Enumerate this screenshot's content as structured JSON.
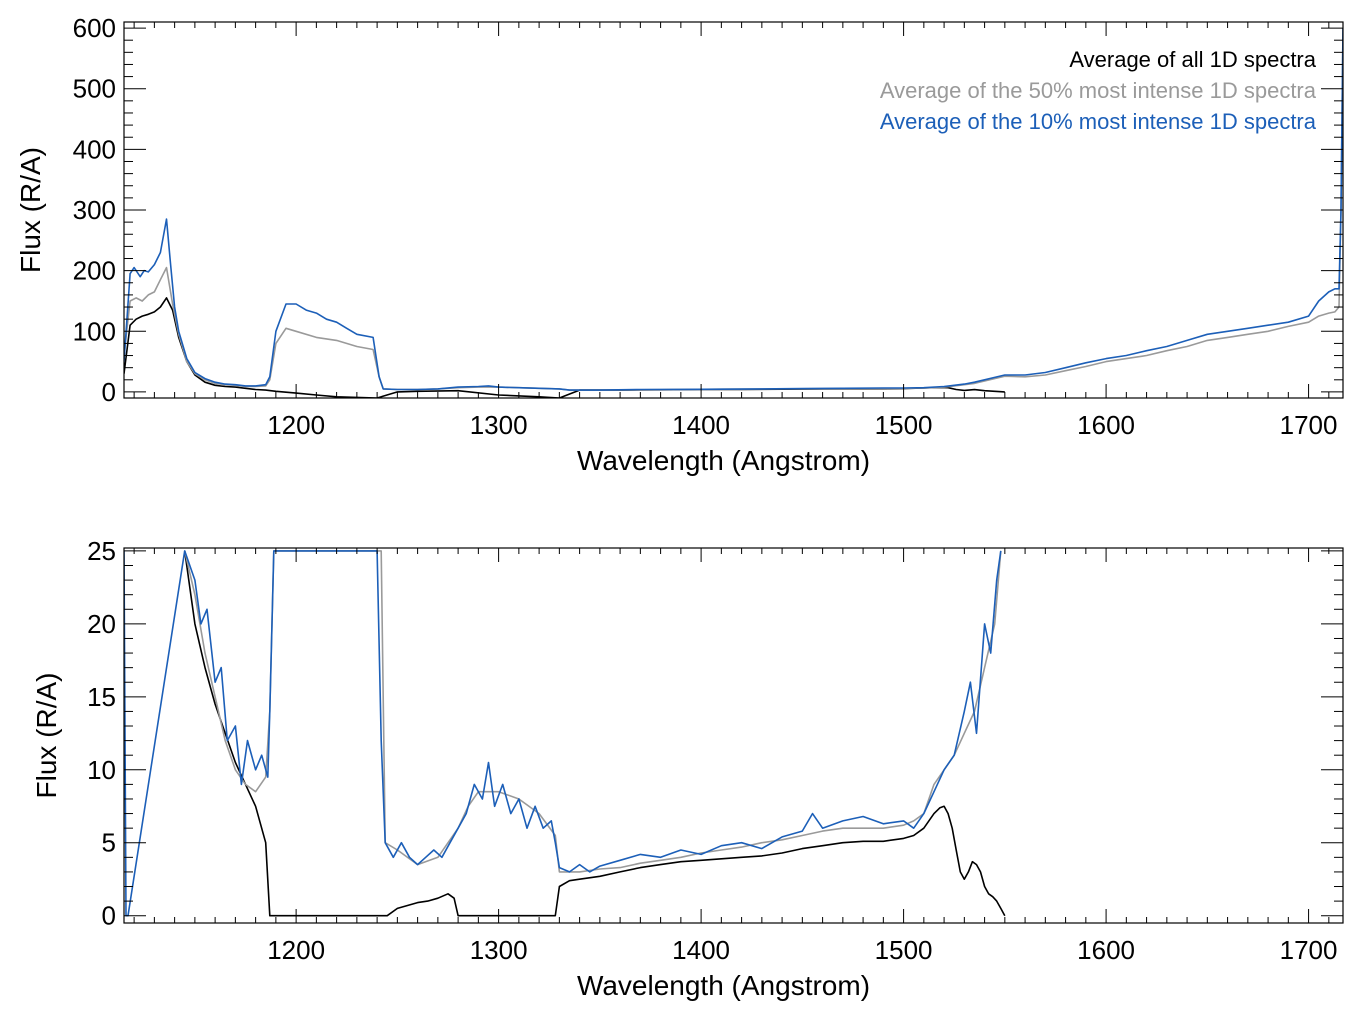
{
  "chart_data": [
    {
      "type": "line",
      "id": "top",
      "xlabel": "Wavelength (Angstrom)",
      "ylabel": "Flux (R/A)",
      "xlim": [
        1115,
        1717
      ],
      "ylim": [
        -10,
        610
      ],
      "xticks": [
        1200,
        1300,
        1400,
        1500,
        1600,
        1700
      ],
      "yticks": [
        0,
        100,
        200,
        300,
        400,
        500,
        600
      ],
      "xtick_labels": [
        "1200",
        "1300",
        "1400",
        "1500",
        "1600",
        "1700"
      ],
      "ytick_labels": [
        "0",
        "100",
        "200",
        "300",
        "400",
        "500",
        "600"
      ],
      "legend": [
        "Average of all 1D spectra",
        "Average of the 50% most intense 1D spectra",
        "Average of the 10% most intense 1D spectra"
      ],
      "legend_position": "top-right",
      "series": [
        {
          "name": "Average of all 1D spectra",
          "color": "#000000",
          "x": [
            1115,
            1118,
            1121,
            1124,
            1127,
            1130,
            1133,
            1136,
            1139,
            1142,
            1146,
            1150,
            1155,
            1160,
            1165,
            1170,
            1175,
            1180,
            1185,
            1190,
            1200,
            1210,
            1220,
            1240,
            1250,
            1260,
            1280,
            1300,
            1320,
            1330,
            1340,
            1360,
            1380,
            1400,
            1420,
            1440,
            1460,
            1480,
            1500,
            1510,
            1518,
            1522,
            1526,
            1530,
            1535,
            1540,
            1545,
            1550
          ],
          "y": [
            30,
            110,
            120,
            125,
            128,
            132,
            140,
            155,
            135,
            90,
            50,
            28,
            16,
            11,
            9,
            8,
            6,
            4,
            3,
            1,
            -2,
            -5,
            -8,
            -10,
            0,
            1,
            2,
            -5,
            -8,
            -10,
            3,
            3,
            3.5,
            4,
            4,
            4.5,
            5,
            5.2,
            5.5,
            6.5,
            7.5,
            7,
            4,
            2.5,
            3.8,
            2,
            1,
            0
          ]
        },
        {
          "name": "Average of the 50% most intense 1D spectra",
          "color": "#9a9a9a",
          "x": [
            1115,
            1118,
            1121,
            1124,
            1127,
            1130,
            1133,
            1136,
            1139,
            1142,
            1146,
            1150,
            1155,
            1160,
            1165,
            1170,
            1175,
            1180,
            1185,
            1187,
            1190,
            1195,
            1200,
            1210,
            1220,
            1230,
            1238,
            1241,
            1243,
            1250,
            1260,
            1270,
            1280,
            1290,
            1300,
            1310,
            1320,
            1330,
            1335,
            1350,
            1370,
            1390,
            1410,
            1430,
            1450,
            1470,
            1490,
            1500,
            1510,
            1520,
            1525,
            1530,
            1535,
            1540,
            1545,
            1550,
            1560,
            1570,
            1580,
            1590,
            1600,
            1610,
            1620,
            1630,
            1640,
            1650,
            1660,
            1670,
            1680,
            1690,
            1700,
            1705,
            1710,
            1713,
            1715,
            1716,
            1717
          ],
          "y": [
            60,
            150,
            155,
            150,
            160,
            165,
            185,
            205,
            145,
            95,
            50,
            30,
            20,
            14,
            12,
            11,
            9,
            9,
            10,
            20,
            80,
            105,
            100,
            90,
            85,
            75,
            70,
            25,
            5,
            4,
            4,
            5,
            7,
            8,
            8,
            7,
            6,
            5,
            3,
            3,
            3.5,
            4,
            4.5,
            4.8,
            5.2,
            5.5,
            6,
            6,
            6.5,
            8,
            10,
            12,
            14,
            18,
            22,
            26,
            25,
            28,
            35,
            42,
            50,
            55,
            60,
            68,
            75,
            85,
            90,
            95,
            100,
            108,
            115,
            125,
            130,
            132,
            140,
            300,
            600
          ]
        },
        {
          "name": "Average of the 10% most intense 1D spectra",
          "color": "#1c5fb8",
          "x": [
            1115,
            1118,
            1120,
            1123,
            1125,
            1127,
            1130,
            1133,
            1136,
            1138,
            1140,
            1142,
            1146,
            1150,
            1155,
            1160,
            1165,
            1170,
            1175,
            1180,
            1185,
            1187,
            1190,
            1195,
            1200,
            1205,
            1210,
            1215,
            1220,
            1225,
            1230,
            1238,
            1241,
            1243,
            1250,
            1260,
            1270,
            1280,
            1290,
            1295,
            1300,
            1310,
            1320,
            1330,
            1335,
            1350,
            1370,
            1390,
            1410,
            1430,
            1450,
            1470,
            1490,
            1500,
            1510,
            1520,
            1525,
            1530,
            1535,
            1540,
            1545,
            1550,
            1560,
            1570,
            1580,
            1590,
            1600,
            1610,
            1620,
            1630,
            1640,
            1650,
            1660,
            1670,
            1680,
            1690,
            1700,
            1705,
            1710,
            1713,
            1715,
            1716,
            1717
          ],
          "y": [
            50,
            195,
            205,
            190,
            200,
            198,
            210,
            230,
            285,
            210,
            140,
            100,
            55,
            32,
            22,
            16,
            13,
            12,
            10,
            10,
            12,
            25,
            100,
            145,
            145,
            135,
            130,
            120,
            115,
            105,
            95,
            90,
            25,
            5,
            4,
            4,
            5,
            8,
            9,
            10,
            8,
            7,
            6,
            5,
            3,
            3,
            4,
            4.2,
            4.5,
            5,
            5.5,
            6,
            6.5,
            6.5,
            7,
            9,
            11,
            13,
            16,
            20,
            24,
            28,
            28,
            32,
            40,
            48,
            55,
            60,
            68,
            75,
            85,
            95,
            100,
            105,
            110,
            115,
            125,
            150,
            165,
            170,
            170,
            300,
            600
          ]
        }
      ]
    },
    {
      "type": "line",
      "id": "bottom",
      "xlabel": "Wavelength (Angstrom)",
      "ylabel": "Flux (R/A)",
      "xlim": [
        1115,
        1717
      ],
      "ylim": [
        -0.5,
        25.2
      ],
      "xticks": [
        1200,
        1300,
        1400,
        1500,
        1600,
        1700
      ],
      "yticks": [
        0,
        5,
        10,
        15,
        20,
        25
      ],
      "xtick_labels": [
        "1200",
        "1300",
        "1400",
        "1500",
        "1600",
        "1700"
      ],
      "ytick_labels": [
        "0",
        "5",
        "10",
        "15",
        "20",
        "25"
      ],
      "series": [
        {
          "name": "Average of all 1D spectra",
          "color": "#000000",
          "x": [
            1145,
            1150,
            1155,
            1160,
            1165,
            1170,
            1175,
            1180,
            1185,
            1187,
            1245,
            1250,
            1255,
            1260,
            1265,
            1270,
            1275,
            1278,
            1280,
            1328,
            1330,
            1335,
            1340,
            1350,
            1360,
            1370,
            1380,
            1390,
            1400,
            1410,
            1420,
            1430,
            1440,
            1450,
            1460,
            1470,
            1480,
            1490,
            1500,
            1505,
            1510,
            1515,
            1518,
            1520,
            1522,
            1524,
            1526,
            1528,
            1530,
            1532,
            1534,
            1536,
            1538,
            1540,
            1542,
            1544,
            1546,
            1548,
            1550
          ],
          "y": [
            25,
            20,
            17,
            14.5,
            12.5,
            10.5,
            9,
            7.5,
            5,
            0,
            0,
            0.5,
            0.7,
            0.9,
            1,
            1.2,
            1.5,
            1.2,
            0,
            0,
            2,
            2.4,
            2.5,
            2.7,
            3,
            3.3,
            3.5,
            3.7,
            3.8,
            3.9,
            4,
            4.1,
            4.3,
            4.6,
            4.8,
            5,
            5.1,
            5.1,
            5.3,
            5.5,
            6,
            7,
            7.4,
            7.5,
            7,
            6,
            4.5,
            3,
            2.5,
            3,
            3.7,
            3.5,
            3,
            2,
            1.5,
            1.3,
            1,
            0.5,
            0
          ]
        },
        {
          "name": "Average of the 50% most intense 1D spectra",
          "color": "#9a9a9a",
          "x": [
            1145,
            1150,
            1155,
            1160,
            1165,
            1170,
            1175,
            1180,
            1185,
            1187,
            1189,
            1242,
            1244,
            1250,
            1260,
            1270,
            1280,
            1285,
            1290,
            1300,
            1310,
            1320,
            1328,
            1330,
            1340,
            1350,
            1360,
            1370,
            1380,
            1390,
            1400,
            1410,
            1420,
            1430,
            1440,
            1450,
            1460,
            1470,
            1480,
            1490,
            1500,
            1505,
            1510,
            1515,
            1520,
            1525,
            1530,
            1535,
            1540,
            1545,
            1548
          ],
          "y": [
            25,
            22,
            18,
            15,
            12,
            10,
            9,
            8.5,
            9.5,
            14,
            25,
            25,
            5,
            4.5,
            3.5,
            4,
            6,
            7.5,
            8.5,
            8.5,
            8,
            7,
            5.5,
            3,
            3,
            3.2,
            3.3,
            3.6,
            3.8,
            4,
            4.3,
            4.5,
            4.7,
            5,
            5.2,
            5.5,
            5.8,
            6,
            6,
            6,
            6.2,
            6.5,
            7,
            9,
            10,
            11,
            12.5,
            14,
            17,
            20,
            25
          ]
        },
        {
          "name": "Average of the 10% most intense 1D spectra",
          "color": "#1c5fb8",
          "x": [
            1115,
            1116,
            1117,
            1145,
            1150,
            1153,
            1156,
            1160,
            1163,
            1166,
            1170,
            1173,
            1176,
            1180,
            1183,
            1186,
            1187,
            1189,
            1240,
            1242,
            1244,
            1248,
            1252,
            1256,
            1260,
            1264,
            1268,
            1272,
            1276,
            1280,
            1284,
            1288,
            1292,
            1295,
            1298,
            1302,
            1306,
            1310,
            1314,
            1318,
            1322,
            1326,
            1328,
            1330,
            1335,
            1340,
            1345,
            1350,
            1360,
            1370,
            1380,
            1390,
            1400,
            1410,
            1420,
            1430,
            1440,
            1450,
            1455,
            1460,
            1470,
            1480,
            1490,
            1500,
            1505,
            1510,
            1515,
            1520,
            1525,
            1530,
            1533,
            1536,
            1540,
            1543,
            1546,
            1548
          ],
          "y": [
            25,
            0,
            0,
            25,
            23,
            20,
            21,
            16,
            17,
            12,
            13,
            9,
            12,
            10,
            11,
            9.5,
            14,
            25,
            25,
            12,
            5,
            4,
            5,
            4,
            3.5,
            4,
            4.5,
            4,
            5,
            6,
            7,
            9,
            8,
            10.5,
            7.5,
            9,
            7,
            8,
            6,
            7.5,
            6,
            6.5,
            5,
            3.3,
            3,
            3.5,
            3,
            3.4,
            3.8,
            4.2,
            4,
            4.5,
            4.2,
            4.8,
            5,
            4.6,
            5.4,
            5.8,
            7,
            6,
            6.5,
            6.8,
            6.3,
            6.5,
            6,
            7,
            8.5,
            10,
            11,
            14,
            16,
            12.5,
            20,
            18,
            23,
            25
          ]
        }
      ]
    }
  ]
}
